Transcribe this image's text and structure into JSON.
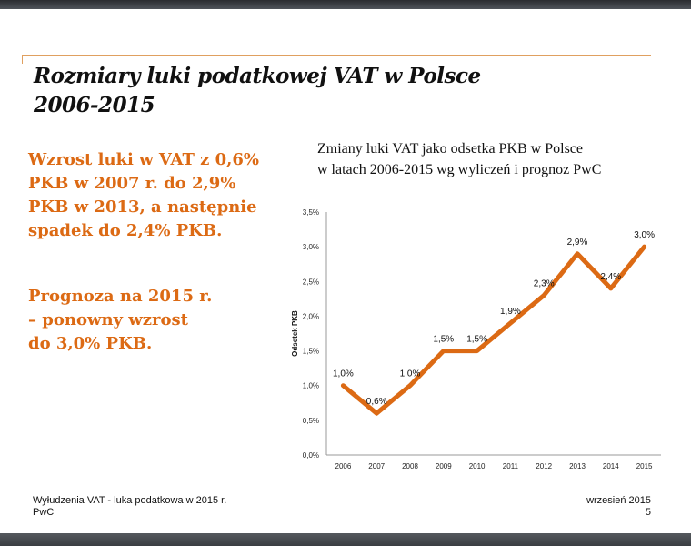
{
  "slide": {
    "title_line1": "Rozmiary luki podatkowej VAT w Polsce",
    "title_line2": "2006-2015",
    "lead1": [
      "Wzrost luki w VAT z 0,6%",
      "PKB w 2007 r. do 2,9%",
      "PKB w 2013, a następnie",
      "spadek do 2,4% PKB."
    ],
    "lead2": [
      "Prognoza na 2015 r.",
      "– ponowny wzrost",
      "do 3,0% PKB."
    ],
    "accent_color": "#dc6a14"
  },
  "footer": {
    "left1": "Wyłudzenia VAT - luka podatkowa w 2015 r.",
    "left2": "PwC",
    "right1": "wrzesień 2015",
    "right2": "5"
  },
  "chart_data": {
    "type": "line",
    "title": "Zmiany luki VAT jako odsetka PKB w Polsce w latach 2006-2015 wg wyliczeń i prognoz  PwC",
    "title_lines": [
      "Zmiany luki VAT jako odsetka PKB w Polsce",
      "w latach 2006-2015 wg wyliczeń i prognoz  PwC"
    ],
    "xlabel": "",
    "ylabel": "Odsetek PKB",
    "categories": [
      "2006",
      "2007",
      "2008",
      "2009",
      "2010",
      "2011",
      "2012",
      "2013",
      "2014",
      "2015"
    ],
    "values": [
      1.0,
      0.6,
      1.0,
      1.5,
      1.5,
      1.9,
      2.3,
      2.9,
      2.4,
      3.0
    ],
    "data_labels": [
      "1,0%",
      "0,6%",
      "1,0%",
      "1,5%",
      "1,5%",
      "1,9%",
      "2,3%",
      "2,9%",
      "2,4%",
      "3,0%"
    ],
    "ylim": [
      0,
      3.5
    ],
    "yticks": [
      "0,0%",
      "0,5%",
      "1,0%",
      "1,5%",
      "2,0%",
      "2,5%",
      "3,0%",
      "3,5%"
    ],
    "grid": false,
    "legend": "none",
    "line_color": "#dc6a14"
  }
}
